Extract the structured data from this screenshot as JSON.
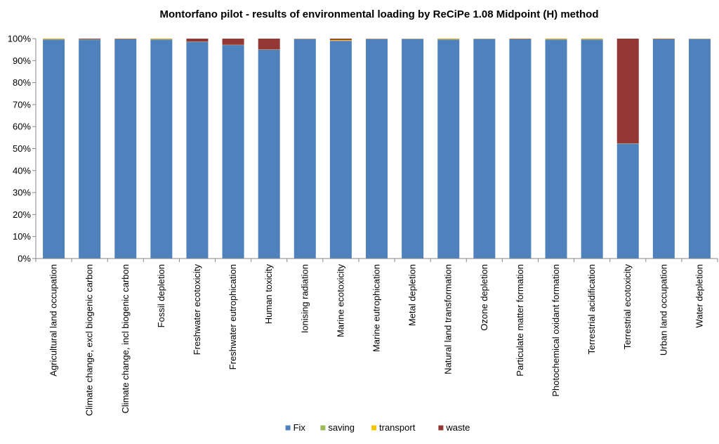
{
  "chart_data": {
    "type": "bar",
    "stacked": true,
    "percent": true,
    "title": "Montorfano pilot - results of environmental loading by ReCiPe 1.08 Midpoint (H) method",
    "ylim": [
      0,
      100
    ],
    "y_ticks": [
      "0%",
      "10%",
      "20%",
      "30%",
      "40%",
      "50%",
      "60%",
      "70%",
      "80%",
      "90%",
      "100%"
    ],
    "grid": false,
    "legend_position": "bottom",
    "categories": [
      "Agricultural land occupation",
      "Climate change, excl biogenic carbon",
      "Climate change, incl biogenic carbon",
      "Fossil depletion",
      "Freshwater ecotoxicity",
      "Freshwater eutrophication",
      "Human toxicity",
      "Ionising radiation",
      "Marine ecotoxicity",
      "Marine eutrophication",
      "Metal depletion",
      "Natural land transformation",
      "Ozone depletion",
      "Particulate matter formation",
      "Photochemical oxidant formation",
      "Terrestrial acidification",
      "Terrestrial ecotoxicity",
      "Urban land occupation",
      "Water depletion"
    ],
    "series": [
      {
        "name": "Fix",
        "color": "#4f81bd",
        "values": [
          99.6,
          99.6,
          99.7,
          99.6,
          98.6,
          97.1,
          95.0,
          99.8,
          99.0,
          99.8,
          99.9,
          99.6,
          99.9,
          99.7,
          99.6,
          99.6,
          52.3,
          99.7,
          99.9
        ]
      },
      {
        "name": "saving",
        "color": "#9bbb59",
        "values": [
          0,
          0,
          0,
          0,
          0,
          0,
          0,
          0,
          0,
          0,
          0,
          0,
          0,
          0,
          0,
          0,
          0,
          0,
          0
        ]
      },
      {
        "name": "transport",
        "color": "#f5c400",
        "values": [
          0.3,
          0.1,
          0.1,
          0.3,
          0.1,
          0.1,
          0.1,
          0.1,
          0.4,
          0.1,
          0.1,
          0.3,
          0.1,
          0.1,
          0.3,
          0.3,
          0.1,
          0.1,
          0.1
        ]
      },
      {
        "name": "waste",
        "color": "#953735",
        "values": [
          0.1,
          0.3,
          0.2,
          0.1,
          1.3,
          2.8,
          4.9,
          0.1,
          0.6,
          0.1,
          0.0,
          0.1,
          0.0,
          0.2,
          0.1,
          0.1,
          47.6,
          0.2,
          0.0
        ]
      }
    ]
  }
}
